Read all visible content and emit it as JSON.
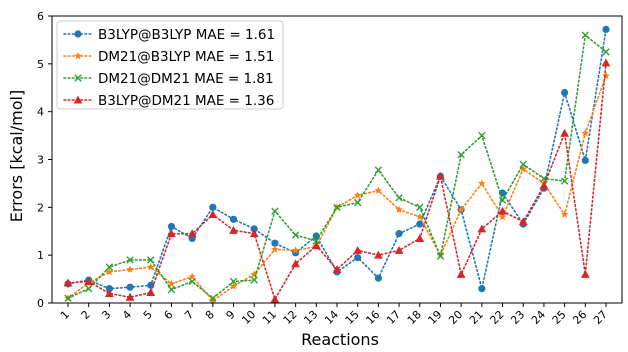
{
  "chart_data": {
    "type": "line",
    "title": "",
    "xlabel": "Reactions",
    "ylabel": "Errors [kcal/mol]",
    "categories": [
      "1",
      "2",
      "3",
      "4",
      "5",
      "6",
      "7",
      "8",
      "9",
      "10",
      "11",
      "12",
      "13",
      "14",
      "15",
      "16",
      "17",
      "18",
      "19",
      "20",
      "21",
      "22",
      "23",
      "24",
      "25",
      "26",
      "27"
    ],
    "ylim": [
      0,
      6
    ],
    "yticks": [
      0,
      1,
      2,
      3,
      4,
      5,
      6
    ],
    "grid": false,
    "legend_position": "top-left",
    "series": [
      {
        "name": "B3LYP@B3LYP MAE = 1.61",
        "color": "#1f77b4",
        "marker": "circle",
        "values": [
          0.4,
          0.48,
          0.3,
          0.33,
          0.37,
          1.6,
          1.35,
          2.0,
          1.75,
          1.55,
          1.25,
          1.05,
          1.4,
          0.65,
          0.95,
          0.52,
          1.45,
          1.65,
          2.65,
          1.95,
          0.3,
          2.3,
          1.65,
          2.4,
          4.4,
          2.98,
          5.72
        ]
      },
      {
        "name": "DM21@B3LYP MAE = 1.51",
        "color": "#ff7f0e",
        "marker": "star",
        "values": [
          0.1,
          0.42,
          0.65,
          0.7,
          0.75,
          0.4,
          0.55,
          0.05,
          0.35,
          0.6,
          1.12,
          1.1,
          1.18,
          2.0,
          2.25,
          2.35,
          1.95,
          1.8,
          1.0,
          1.95,
          2.5,
          1.8,
          2.8,
          2.5,
          1.85,
          3.55,
          4.75
        ]
      },
      {
        "name": "DM21@DM21 MAE = 1.81",
        "color": "#2ca02c",
        "marker": "x",
        "values": [
          0.1,
          0.3,
          0.75,
          0.9,
          0.9,
          0.28,
          0.45,
          0.1,
          0.45,
          0.48,
          1.92,
          1.42,
          1.3,
          2.0,
          2.1,
          2.78,
          2.2,
          2.0,
          0.98,
          3.1,
          3.5,
          2.15,
          2.9,
          2.6,
          2.55,
          5.6,
          5.25
        ]
      },
      {
        "name": "B3LYP@DM21 MAE = 1.36",
        "color": "#d62728",
        "marker": "triangle",
        "values": [
          0.42,
          0.45,
          0.2,
          0.12,
          0.22,
          1.45,
          1.45,
          1.85,
          1.52,
          1.45,
          0.08,
          0.82,
          1.2,
          0.7,
          1.1,
          1.0,
          1.1,
          1.35,
          2.65,
          0.6,
          1.55,
          1.92,
          1.7,
          2.45,
          3.55,
          0.6,
          5.02
        ]
      }
    ]
  }
}
